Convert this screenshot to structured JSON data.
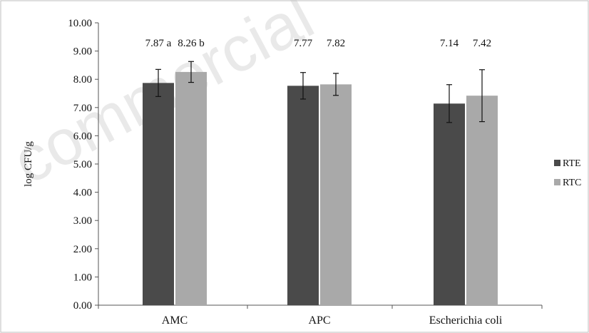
{
  "watermark": "commercial",
  "chart_data": {
    "type": "bar",
    "categories": [
      "AMC",
      "APC",
      "Escherichia coli"
    ],
    "series": [
      {
        "name": "RTE",
        "color": "#4a4a4a",
        "values": [
          7.87,
          7.77,
          7.14
        ],
        "errors": [
          0.48,
          0.47,
          0.67
        ],
        "labels": [
          "7.87 a",
          "7.77",
          "7.14"
        ]
      },
      {
        "name": "RTC",
        "color": "#a9a9a9",
        "values": [
          8.26,
          7.82,
          7.42
        ],
        "errors": [
          0.37,
          0.39,
          0.92
        ],
        "labels": [
          "8.26 b",
          "7.82",
          "7.42"
        ]
      }
    ],
    "ylabel": "log CFU/g",
    "ylim": [
      0,
      10
    ],
    "yticks": [
      "0.00",
      "1.00",
      "2.00",
      "3.00",
      "4.00",
      "5.00",
      "6.00",
      "7.00",
      "8.00",
      "9.00",
      "10.00"
    ],
    "legend_position": "right",
    "grid": false
  }
}
